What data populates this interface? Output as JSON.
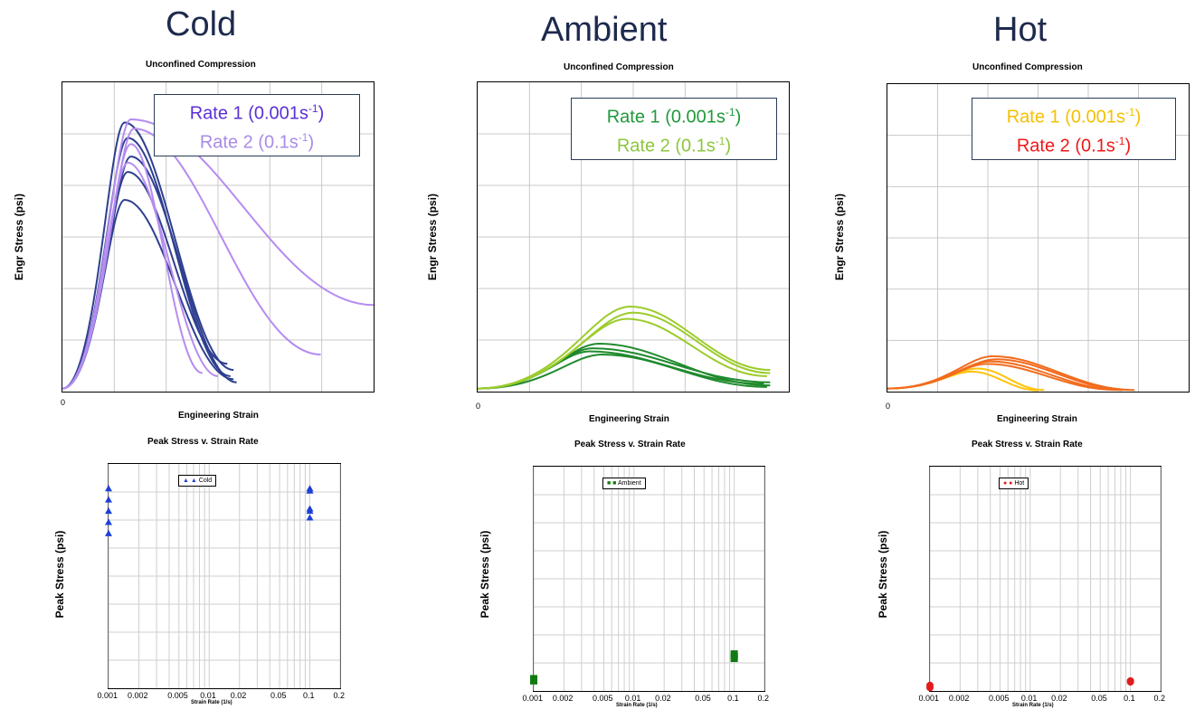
{
  "headings": {
    "cold": "Cold",
    "ambient": "Ambient",
    "hot": "Hot"
  },
  "common": {
    "curve_title": "Unconfined Compression",
    "curve_xlabel": "Engineering Strain",
    "curve_ylabel": "Engr Stress (psi)",
    "zero": "0",
    "peak_title": "Peak Stress v. Strain Rate",
    "peak_xlabel": "Strain Rate (1/s)",
    "peak_ylabel": "Peak Stress (psi)"
  },
  "legends": {
    "cold": {
      "rate1_text": "Rate 1 (0.001s",
      "rate1_unit": "-1",
      "rate2_text": "Rate 2 (0.1s",
      "rate2_unit": "-1",
      "close": ")",
      "rate1_color": "#5b2fd6",
      "rate2_color": "#a98be8"
    },
    "ambient": {
      "rate1_text": "Rate 1 (0.001s",
      "rate1_unit": "-1",
      "rate2_text": "Rate 2 (0.1s",
      "rate2_unit": "-1",
      "close": ")",
      "rate1_color": "#1f9a3a",
      "rate2_color": "#8cc63e"
    },
    "hot": {
      "rate1_text": "Rate 1 (0.001s",
      "rate1_unit": "-1",
      "rate2_text": "Rate 2 (0.1s",
      "rate2_unit": "-1",
      "close": ")",
      "rate1_color": "#f5c000",
      "rate2_color": "#f01818"
    }
  },
  "small_legends": {
    "cold": "Cold",
    "ambient": "Ambient",
    "hot": "Hot"
  },
  "colors": {
    "cold_r1": "#2e3f8f",
    "cold_r2": "#b58cf0",
    "amb_r1": "#1f8a2c",
    "amb_r2": "#9ccc2c",
    "hot_r1": "#ffc20a",
    "hot_r2": "#f26b1d",
    "cold_marker": "#1f3fd9",
    "amb_marker": "#127a12",
    "hot_marker": "#e31b1b"
  },
  "chart_data": [
    {
      "type": "line",
      "title": "Unconfined Compression",
      "panel": "Cold",
      "xlabel": "Engineering Strain",
      "ylabel": "Engr Stress (psi)",
      "grid": true,
      "x_range": [
        0,
        1
      ],
      "y_range": [
        0,
        1
      ],
      "series": [
        {
          "name": "Rate 1 (0.001s-1)",
          "runs": [
            {
              "peak_x": 0.2,
              "peak_y": 0.87,
              "end_x": 0.55,
              "end_y": 0.07
            },
            {
              "peak_x": 0.21,
              "peak_y": 0.82,
              "end_x": 0.54,
              "end_y": 0.05
            },
            {
              "peak_x": 0.22,
              "peak_y": 0.76,
              "end_x": 0.56,
              "end_y": 0.03
            },
            {
              "peak_x": 0.21,
              "peak_y": 0.71,
              "end_x": 0.53,
              "end_y": 0.09
            },
            {
              "peak_x": 0.2,
              "peak_y": 0.62,
              "end_x": 0.55,
              "end_y": 0.04
            }
          ]
        },
        {
          "name": "Rate 2 (0.1s-1)",
          "runs": [
            {
              "peak_x": 0.22,
              "peak_y": 0.88,
              "end_x": 1.0,
              "end_y": 0.28
            },
            {
              "peak_x": 0.23,
              "peak_y": 0.85,
              "end_x": 0.83,
              "end_y": 0.12
            },
            {
              "peak_x": 0.22,
              "peak_y": 0.8,
              "end_x": 0.45,
              "end_y": 0.06
            },
            {
              "peak_x": 0.21,
              "peak_y": 0.74,
              "end_x": 0.5,
              "end_y": 0.05
            }
          ]
        }
      ]
    },
    {
      "type": "line",
      "title": "Unconfined Compression",
      "panel": "Ambient",
      "xlabel": "Engineering Strain",
      "ylabel": "Engr Stress (psi)",
      "grid": true,
      "x_range": [
        0,
        1
      ],
      "y_range": [
        0,
        1
      ],
      "series": [
        {
          "name": "Rate 1 (0.001s-1)",
          "runs": [
            {
              "peak_x": 0.39,
              "peak_y": 0.155,
              "end_x": 0.94,
              "end_y": 0.02
            },
            {
              "peak_x": 0.37,
              "peak_y": 0.14,
              "end_x": 0.94,
              "end_y": 0.03
            },
            {
              "peak_x": 0.36,
              "peak_y": 0.13,
              "end_x": 0.92,
              "end_y": 0.025
            },
            {
              "peak_x": 0.4,
              "peak_y": 0.12,
              "end_x": 0.93,
              "end_y": 0.015
            }
          ]
        },
        {
          "name": "Rate 2 (0.1s-1)",
          "runs": [
            {
              "peak_x": 0.49,
              "peak_y": 0.275,
              "end_x": 0.94,
              "end_y": 0.07
            },
            {
              "peak_x": 0.5,
              "peak_y": 0.255,
              "end_x": 0.94,
              "end_y": 0.06
            },
            {
              "peak_x": 0.48,
              "peak_y": 0.235,
              "end_x": 0.93,
              "end_y": 0.05
            }
          ]
        }
      ]
    },
    {
      "type": "line",
      "title": "Unconfined Compression",
      "panel": "Hot",
      "xlabel": "Engineering Strain",
      "ylabel": "Engr Stress (psi)",
      "grid": true,
      "x_range": [
        0,
        1
      ],
      "y_range": [
        0,
        1
      ],
      "series": [
        {
          "name": "Rate 1 (0.001s-1)",
          "runs": [
            {
              "peak_x": 0.3,
              "peak_y": 0.075,
              "end_x": 0.52,
              "end_y": 0.005
            },
            {
              "peak_x": 0.28,
              "peak_y": 0.065,
              "end_x": 0.5,
              "end_y": 0.004
            }
          ]
        },
        {
          "name": "Rate 2 (0.1s-1)",
          "runs": [
            {
              "peak_x": 0.35,
              "peak_y": 0.115,
              "end_x": 0.82,
              "end_y": 0.005
            },
            {
              "peak_x": 0.36,
              "peak_y": 0.105,
              "end_x": 0.8,
              "end_y": 0.006
            },
            {
              "peak_x": 0.34,
              "peak_y": 0.098,
              "end_x": 0.78,
              "end_y": 0.005
            },
            {
              "peak_x": 0.33,
              "peak_y": 0.09,
              "end_x": 0.76,
              "end_y": 0.006
            }
          ]
        }
      ]
    },
    {
      "type": "scatter",
      "title": "Peak Stress v. Strain Rate",
      "panel": "Cold",
      "xlabel": "Strain Rate (1/s)",
      "ylabel": "Peak Stress (psi)",
      "x_scale": "log",
      "x_ticks": [
        "0.001",
        "0.002",
        "0.005",
        "0.01",
        "0.02",
        "0.05",
        "0.1",
        "0.2"
      ],
      "x_range": [
        0.001,
        0.2
      ],
      "y_range": [
        0,
        1
      ],
      "legend": "Cold",
      "series": [
        {
          "name": "Cold",
          "points": [
            {
              "x": 0.001,
              "y": 0.89
            },
            {
              "x": 0.001,
              "y": 0.84
            },
            {
              "x": 0.001,
              "y": 0.79
            },
            {
              "x": 0.001,
              "y": 0.74
            },
            {
              "x": 0.001,
              "y": 0.69
            },
            {
              "x": 0.1,
              "y": 0.89
            },
            {
              "x": 0.1,
              "y": 0.88
            },
            {
              "x": 0.1,
              "y": 0.8
            },
            {
              "x": 0.1,
              "y": 0.79
            },
            {
              "x": 0.1,
              "y": 0.76
            }
          ]
        }
      ]
    },
    {
      "type": "scatter",
      "title": "Peak Stress v. Strain Rate",
      "panel": "Ambient",
      "xlabel": "Strain Rate (1/s)",
      "ylabel": "Peak Stress (psi)",
      "x_scale": "log",
      "x_ticks": [
        "0.001",
        "0.002",
        "0.005",
        "0.01",
        "0.02",
        "0.05",
        "0.1",
        "0.2"
      ],
      "x_range": [
        0.001,
        0.2
      ],
      "y_range": [
        0,
        1
      ],
      "legend": "Ambient",
      "series": [
        {
          "name": "Ambient",
          "points": [
            {
              "x": 0.001,
              "y": 0.055
            },
            {
              "x": 0.001,
              "y": 0.045
            },
            {
              "x": 0.1,
              "y": 0.165
            },
            {
              "x": 0.1,
              "y": 0.155
            },
            {
              "x": 0.1,
              "y": 0.145
            }
          ]
        }
      ]
    },
    {
      "type": "scatter",
      "title": "Peak Stress v. Strain Rate",
      "panel": "Hot",
      "xlabel": "Strain Rate (1/s)",
      "ylabel": "Peak Stress (psi)",
      "x_scale": "log",
      "x_ticks": [
        "0.001",
        "0.002",
        "0.005",
        "0.01",
        "0.02",
        "0.05",
        "0.1",
        "0.2"
      ],
      "x_range": [
        0.001,
        0.2
      ],
      "y_range": [
        0,
        1
      ],
      "legend": "Hot",
      "series": [
        {
          "name": "Hot",
          "points": [
            {
              "x": 0.001,
              "y": 0.025
            },
            {
              "x": 0.001,
              "y": 0.015
            },
            {
              "x": 0.1,
              "y": 0.045
            },
            {
              "x": 0.1,
              "y": 0.04
            }
          ]
        }
      ]
    }
  ]
}
